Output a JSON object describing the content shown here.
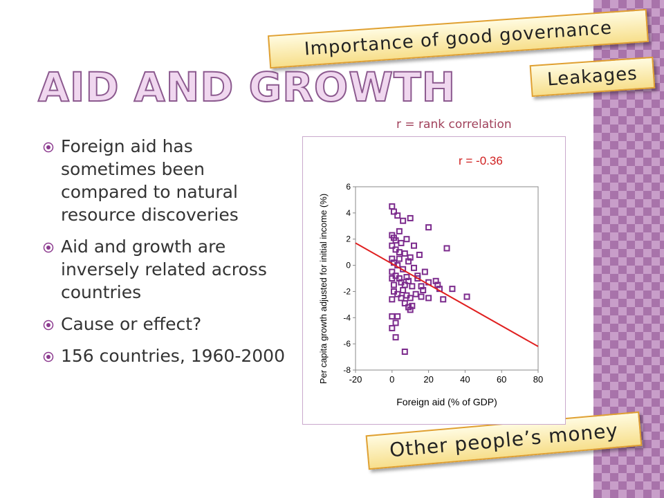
{
  "slide": {
    "title": "AID AND GROWTH",
    "bullets": [
      "Foreign aid has sometimes been compared to natural resource discoveries",
      "Aid and growth are inversely related across countries",
      "Cause or effect?",
      "156 countries, 1960-2000"
    ],
    "callouts": [
      "Importance of good governance",
      "Leakages",
      "Other people’s money"
    ],
    "note": "r = rank correlation"
  },
  "chart_data": {
    "type": "scatter",
    "annotation": "r = -0.36",
    "x_label": "Foreign aid (% of GDP)",
    "y_label": "Per capita growth adjusted for initial income (%)",
    "xlim": [
      -20,
      80
    ],
    "xticks": [
      -20,
      0,
      20,
      40,
      60,
      80
    ],
    "ylim": [
      -8,
      6
    ],
    "yticks": [
      -8,
      -6,
      -4,
      -2,
      0,
      2,
      4,
      6
    ],
    "series": [
      {
        "color": "#7b2a8c",
        "x": [
          0,
          1,
          3,
          6,
          20,
          10,
          4,
          0,
          1,
          2,
          5,
          8,
          12,
          30,
          0,
          2,
          4,
          7,
          10,
          15,
          0,
          1,
          3,
          6,
          9,
          12,
          0,
          2,
          4,
          5,
          7,
          9,
          11,
          14,
          17,
          20,
          25,
          26,
          0,
          1,
          3,
          6,
          8,
          10,
          13,
          16,
          20,
          28,
          33,
          41,
          0,
          5,
          7,
          9,
          10,
          11,
          0,
          2,
          3,
          0,
          2,
          7,
          24,
          18,
          14,
          1,
          4,
          8,
          16
        ],
        "y": [
          4.5,
          4.1,
          3.8,
          3.4,
          2.9,
          3.6,
          2.6,
          2.3,
          2.1,
          1.9,
          1.7,
          2.0,
          1.5,
          1.3,
          1.5,
          1.2,
          1.0,
          0.9,
          0.6,
          0.8,
          0.5,
          0.2,
          0.0,
          -0.3,
          0.3,
          -0.2,
          -0.5,
          -0.8,
          -1.0,
          -1.3,
          -1.5,
          -1.2,
          -1.6,
          -1.0,
          -1.9,
          -1.3,
          -1.5,
          -1.8,
          -1.0,
          -2.0,
          -2.2,
          -1.9,
          -2.3,
          -2.5,
          -2.2,
          -2.4,
          -2.5,
          -2.6,
          -1.8,
          -2.4,
          -2.6,
          -2.5,
          -2.9,
          -3.2,
          -3.4,
          -3.1,
          -3.9,
          -4.4,
          -3.9,
          -4.8,
          -5.5,
          -6.6,
          -1.2,
          -0.5,
          -0.8,
          -1.5,
          0.5,
          -0.9,
          -1.6
        ]
      }
    ],
    "trend_line": {
      "color": "#e02020",
      "x": [
        -20,
        80
      ],
      "y": [
        1.7,
        -6.2
      ]
    }
  }
}
